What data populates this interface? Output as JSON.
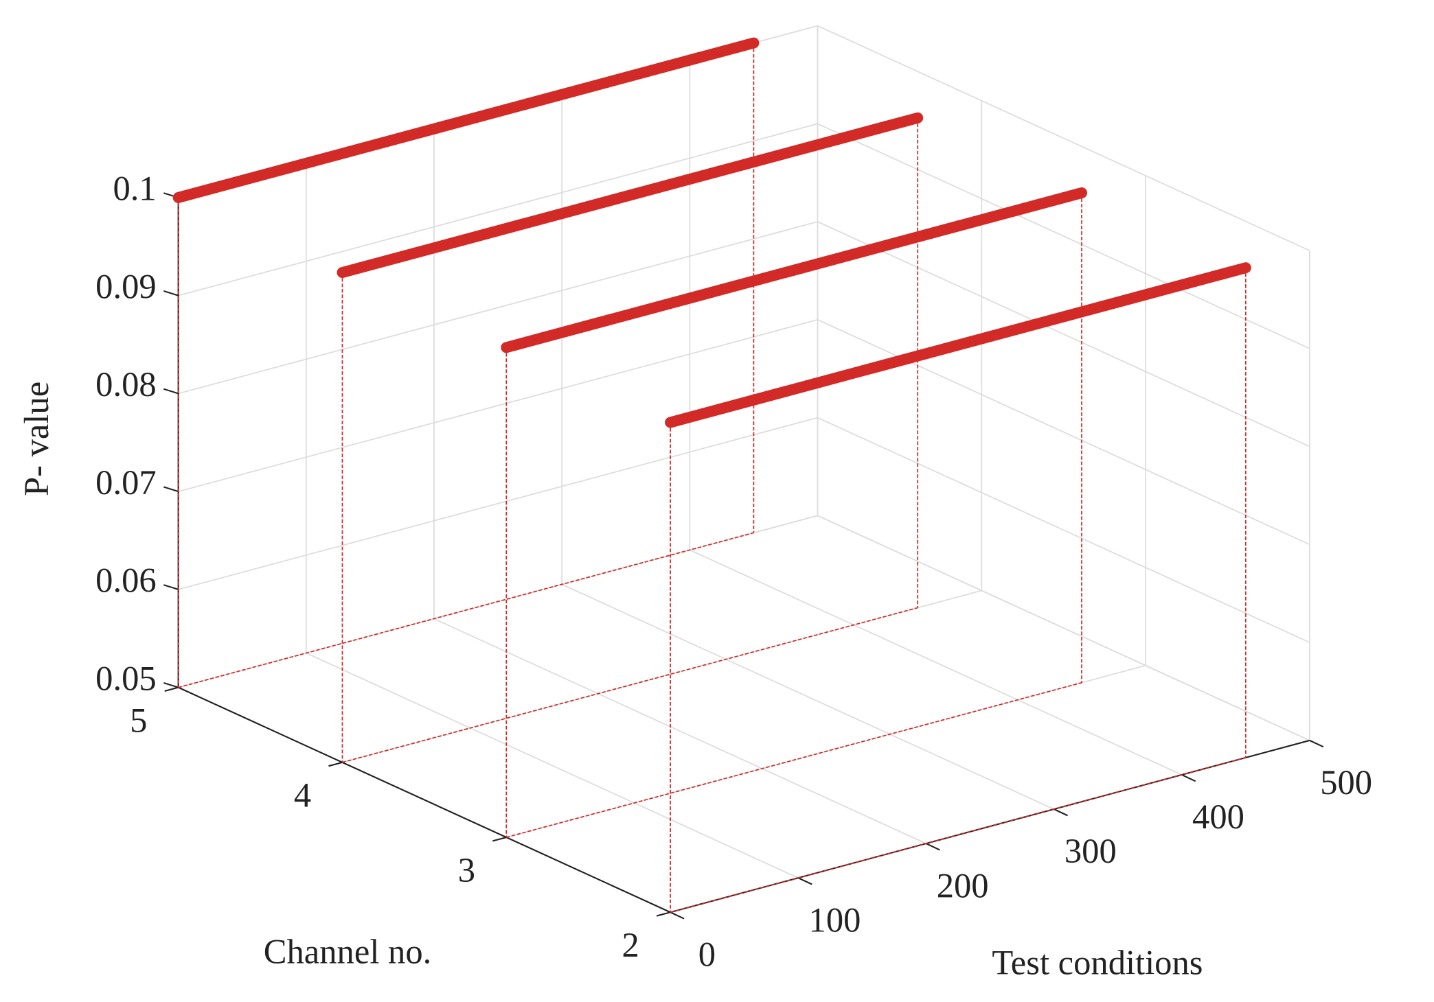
{
  "chart_data": {
    "type": "line3d",
    "xlabel": "Test conditions",
    "ylabel": "Channel no.",
    "zlabel": "P- value",
    "x": [
      0,
      450
    ],
    "series": [
      {
        "y": 2,
        "color": "#d22b27",
        "values": [
          0.1,
          0.1
        ]
      },
      {
        "y": 3,
        "color": "#d22b27",
        "values": [
          0.1,
          0.1
        ]
      },
      {
        "y": 4,
        "color": "#d22b27",
        "values": [
          0.1,
          0.1
        ]
      },
      {
        "y": 5,
        "color": "#d22b27",
        "values": [
          0.1,
          0.1
        ]
      }
    ],
    "xlim": [
      0,
      500
    ],
    "xticks": [
      0,
      100,
      200,
      300,
      400,
      500
    ],
    "ylim": [
      2,
      5
    ],
    "yticks": [
      2,
      3,
      4,
      5
    ],
    "zlim": [
      0.05,
      0.1
    ],
    "zticks": [
      0.05,
      0.06,
      0.07,
      0.08,
      0.09,
      0.1
    ],
    "grid": true
  }
}
